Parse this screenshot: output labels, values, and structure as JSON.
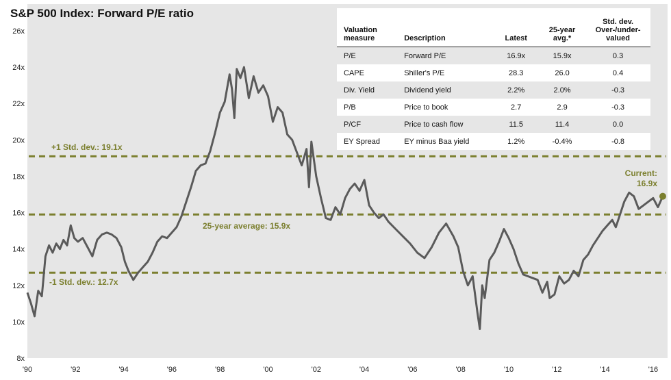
{
  "title": "S&P 500 Index: Forward P/E ratio",
  "annotations": {
    "plus_std": "+1 Std. dev.: 19.1x",
    "avg": "25-year average: 15.9x",
    "minus_std": "-1 Std. dev.: 12.7x",
    "current_label": "Current:",
    "current_value": "16.9x"
  },
  "colors": {
    "line": "#5a5a5a",
    "reference": "#7b7f2e",
    "plot_bg": "#e6e6e6"
  },
  "table": {
    "headers": [
      "Valuation measure",
      "Description",
      "Latest",
      "25-year avg.*",
      "Std. dev. Over-/under-valued"
    ],
    "rows": [
      [
        "P/E",
        "Forward P/E",
        "16.9x",
        "15.9x",
        "0.3"
      ],
      [
        "CAPE",
        "Shiller's P/E",
        "28.3",
        "26.0",
        "0.4"
      ],
      [
        "Div. Yield",
        "Dividend yield",
        "2.2%",
        "2.0%",
        "-0.3"
      ],
      [
        "P/B",
        "Price to book",
        "2.7",
        "2.9",
        "-0.3"
      ],
      [
        "P/CF",
        "Price to cash flow",
        "11.5",
        "11.4",
        "0.0"
      ],
      [
        "EY Spread",
        "EY minus Baa yield",
        "1.2%",
        "-0.4%",
        "-0.8"
      ]
    ]
  },
  "chart_data": {
    "type": "line",
    "title": "S&P 500 Index: Forward P/E ratio",
    "ylim": [
      8,
      26
    ],
    "xlim": [
      1990,
      2016.6
    ],
    "yticks": [
      8,
      10,
      12,
      14,
      16,
      18,
      20,
      22,
      24,
      26
    ],
    "ytick_labels": [
      "8x",
      "10x",
      "12x",
      "14x",
      "16x",
      "18x",
      "20x",
      "22x",
      "24x",
      "26x"
    ],
    "xticks": [
      1990,
      1992,
      1994,
      1996,
      1998,
      2000,
      2002,
      2004,
      2006,
      2008,
      2010,
      2012,
      2014,
      2016
    ],
    "xtick_labels": [
      "'90",
      "'92",
      "'94",
      "'96",
      "'98",
      "'00",
      "'02",
      "'04",
      "'06",
      "'08",
      "'10",
      "'12",
      "'14",
      "'16"
    ],
    "reference_lines": [
      19.1,
      15.9,
      12.7
    ],
    "current": {
      "x": 2016.4,
      "y": 16.9
    },
    "series": [
      {
        "x": [
          1990.0,
          1990.15,
          1990.3,
          1990.45,
          1990.6,
          1990.75,
          1990.9,
          1991.05,
          1991.2,
          1991.35,
          1991.5,
          1991.65,
          1991.8,
          1991.95,
          1992.1,
          1992.3,
          1992.5,
          1992.7,
          1992.9,
          1993.1,
          1993.3,
          1993.5,
          1993.7,
          1993.9,
          1994.05,
          1994.2,
          1994.4,
          1994.6,
          1994.8,
          1995.0,
          1995.2,
          1995.4,
          1995.6,
          1995.8,
          1996.0,
          1996.2,
          1996.4,
          1996.6,
          1996.8,
          1997.0,
          1997.2,
          1997.4,
          1997.6,
          1997.8,
          1998.0,
          1998.2,
          1998.4,
          1998.5,
          1998.6,
          1998.7,
          1998.85,
          1999.0,
          1999.2,
          1999.4,
          1999.6,
          1999.8,
          2000.0,
          2000.2,
          2000.4,
          2000.6,
          2000.8,
          2001.0,
          2001.2,
          2001.4,
          2001.6,
          2001.7,
          2001.8,
          2002.0,
          2002.2,
          2002.4,
          2002.6,
          2002.8,
          2003.0,
          2003.2,
          2003.4,
          2003.6,
          2003.8,
          2004.0,
          2004.2,
          2004.4,
          2004.6,
          2004.8,
          2005.0,
          2005.3,
          2005.6,
          2005.9,
          2006.2,
          2006.5,
          2006.8,
          2007.1,
          2007.4,
          2007.7,
          2007.9,
          2008.1,
          2008.3,
          2008.5,
          2008.7,
          2008.8,
          2008.9,
          2009.0,
          2009.2,
          2009.4,
          2009.6,
          2009.8,
          2010.0,
          2010.2,
          2010.4,
          2010.6,
          2010.8,
          2011.0,
          2011.2,
          2011.4,
          2011.6,
          2011.7,
          2011.9,
          2012.1,
          2012.3,
          2012.5,
          2012.7,
          2012.9,
          2013.1,
          2013.3,
          2013.5,
          2013.7,
          2013.9,
          2014.1,
          2014.3,
          2014.45,
          2014.6,
          2014.8,
          2015.0,
          2015.2,
          2015.4,
          2015.6,
          2015.8,
          2016.0,
          2016.2,
          2016.4
        ],
        "values": [
          11.6,
          11.0,
          10.3,
          11.7,
          11.4,
          13.6,
          14.2,
          13.8,
          14.3,
          14.0,
          14.5,
          14.2,
          15.3,
          14.6,
          14.4,
          14.6,
          14.1,
          13.6,
          14.5,
          14.8,
          14.9,
          14.8,
          14.6,
          14.1,
          13.3,
          12.8,
          12.3,
          12.7,
          13.0,
          13.3,
          13.8,
          14.4,
          14.7,
          14.6,
          14.9,
          15.2,
          15.8,
          16.6,
          17.4,
          18.3,
          18.6,
          18.7,
          19.4,
          20.4,
          21.5,
          22.1,
          23.6,
          22.8,
          21.2,
          23.9,
          23.4,
          24.0,
          22.3,
          23.5,
          22.6,
          23.0,
          22.4,
          21.0,
          21.8,
          21.5,
          20.3,
          20.0,
          19.3,
          18.6,
          19.5,
          17.4,
          19.9,
          18.0,
          16.8,
          15.7,
          15.6,
          16.3,
          15.9,
          16.8,
          17.3,
          17.6,
          17.2,
          17.8,
          16.4,
          16.0,
          15.7,
          15.9,
          15.5,
          15.1,
          14.7,
          14.3,
          13.8,
          13.5,
          14.1,
          14.9,
          15.4,
          14.7,
          14.1,
          12.8,
          12.0,
          12.5,
          10.5,
          9.6,
          12.0,
          11.3,
          13.4,
          13.8,
          14.4,
          15.1,
          14.6,
          14.0,
          13.2,
          12.6,
          12.5,
          12.4,
          12.3,
          11.6,
          12.2,
          11.3,
          11.5,
          12.5,
          12.1,
          12.3,
          12.8,
          12.5,
          13.4,
          13.7,
          14.2,
          14.6,
          15.0,
          15.3,
          15.6,
          15.2,
          15.8,
          16.6,
          17.1,
          16.9,
          16.2,
          16.4,
          16.6,
          16.8,
          16.3,
          16.9
        ]
      }
    ]
  }
}
